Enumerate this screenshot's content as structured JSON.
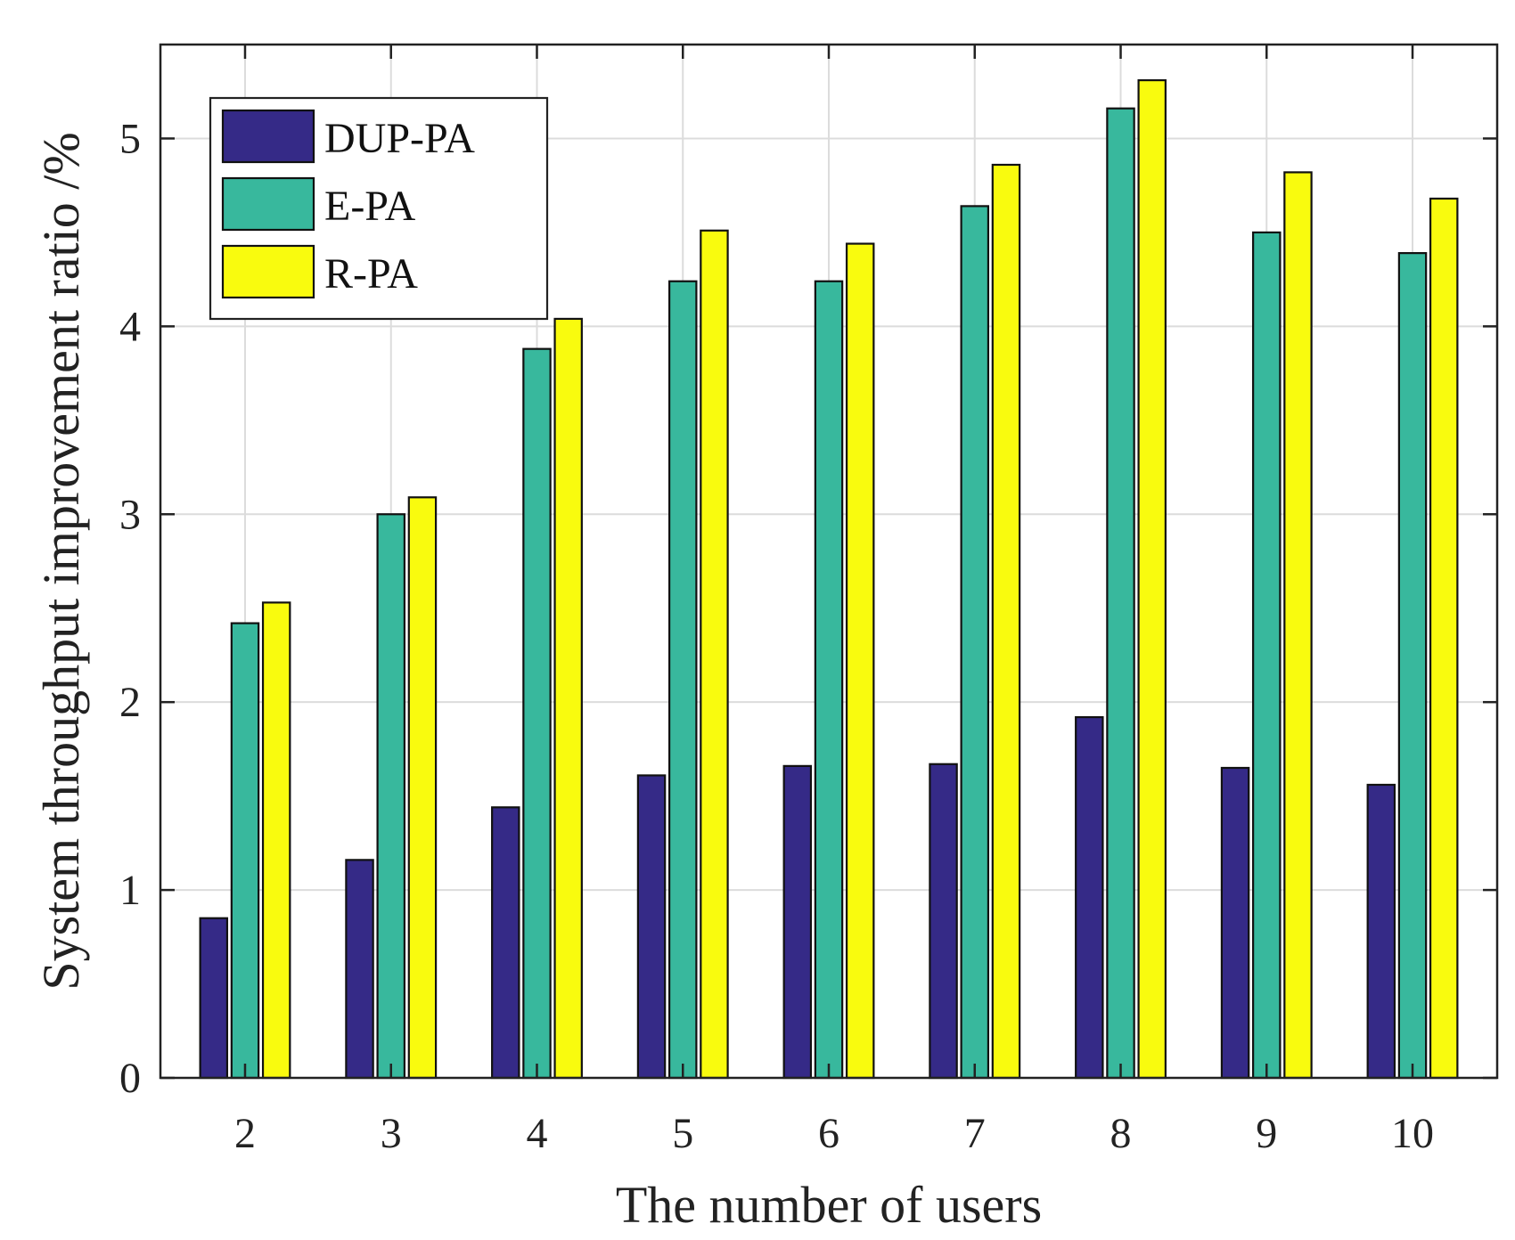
{
  "chart_data": {
    "type": "bar",
    "title": "",
    "xlabel": "The number of users",
    "ylabel": "System throughput improvement ratio /%",
    "categories": [
      "2",
      "3",
      "4",
      "5",
      "6",
      "7",
      "8",
      "9",
      "10"
    ],
    "series": [
      {
        "name": "DUP-PA",
        "color": "#352a87",
        "values": [
          0.85,
          1.16,
          1.44,
          1.61,
          1.66,
          1.67,
          1.92,
          1.65,
          1.56
        ]
      },
      {
        "name": "E-PA",
        "color": "#38b89d",
        "values": [
          2.42,
          3.0,
          3.88,
          4.24,
          4.24,
          4.64,
          5.16,
          4.5,
          4.39
        ]
      },
      {
        "name": "R-PA",
        "color": "#f9fb0e",
        "values": [
          2.53,
          3.09,
          4.04,
          4.51,
          4.44,
          4.86,
          5.31,
          4.82,
          4.68
        ]
      }
    ],
    "ylim": [
      0,
      5.5
    ],
    "yticks": [
      "0",
      "1",
      "2",
      "3",
      "4",
      "5"
    ],
    "grid": true,
    "legend_position": "top-left"
  }
}
